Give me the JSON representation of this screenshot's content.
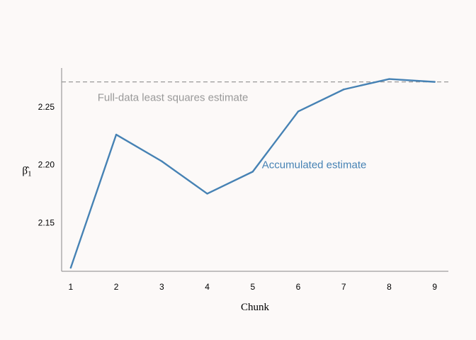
{
  "chart_data": {
    "type": "line",
    "title": "",
    "xlabel": "Chunk",
    "ylabel": "β̂",
    "ylabel_subscript": "1",
    "x": [
      1,
      2,
      3,
      4,
      5,
      6,
      7,
      8,
      9
    ],
    "x_tick_labels": [
      "1",
      "2",
      "3",
      "4",
      "5",
      "6",
      "7",
      "8",
      "9"
    ],
    "y_ticks": [
      2.15,
      2.2,
      2.25
    ],
    "y_tick_labels": [
      "2.15",
      "2.20",
      "2.25"
    ],
    "xlim": [
      0.8,
      9.3
    ],
    "ylim": [
      2.108,
      2.2835
    ],
    "grid": false,
    "series": [
      {
        "name": "Accumulated estimate",
        "color": "#4682b4",
        "values": [
          2.111,
          2.226,
          2.203,
          2.175,
          2.194,
          2.246,
          2.265,
          2.274,
          2.2715
        ]
      }
    ],
    "reference_line": {
      "label": "Full-data least squares estimate",
      "value": 2.2715,
      "color": "#999999",
      "style": "dashed"
    },
    "annotations": {
      "reference": {
        "text": "Full-data least squares estimate",
        "x": 4.9,
        "y": 2.258
      },
      "series": {
        "text": "Accumulated estimate",
        "x": 7.5,
        "y": 2.2
      }
    }
  }
}
